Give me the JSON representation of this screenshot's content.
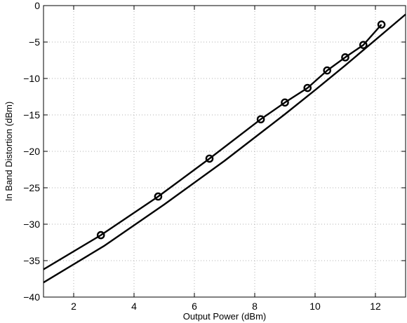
{
  "chart_data": {
    "type": "line",
    "title": "",
    "xlabel": "Output Power (dBm)",
    "ylabel": "In Band Distortion (dBm)",
    "xlim": [
      1,
      13
    ],
    "ylim": [
      -40,
      0
    ],
    "xticks": [
      2,
      4,
      6,
      8,
      10,
      12
    ],
    "yticks": [
      0,
      -5,
      -10,
      -15,
      -20,
      -25,
      -30,
      -35,
      -40
    ],
    "grid": true,
    "legend": "none",
    "series": [
      {
        "marker": "circle",
        "x": [
          1.0,
          2.9,
          4.8,
          6.5,
          8.2,
          9.0,
          9.75,
          10.4,
          11.0,
          11.6,
          12.2
        ],
        "y": [
          -36.2,
          -31.5,
          -26.2,
          -21.0,
          -15.6,
          -13.3,
          -11.3,
          -8.9,
          -7.1,
          -5.4,
          -2.6
        ]
      },
      {
        "marker": "none",
        "x": [
          1.0,
          3.0,
          5.0,
          7.0,
          9.0,
          10.0,
          11.0,
          12.0,
          13.0
        ],
        "y": [
          -38.0,
          -33.0,
          -27.3,
          -21.3,
          -14.9,
          -11.6,
          -8.2,
          -4.7,
          -1.2
        ]
      }
    ]
  }
}
